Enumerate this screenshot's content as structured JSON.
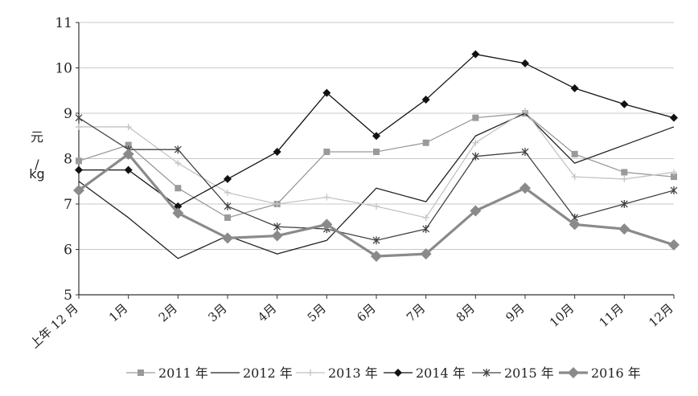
{
  "chart_data": {
    "type": "line",
    "ylabel": "元/kg",
    "ylabel_parts": [
      "元",
      "/",
      "kg"
    ],
    "ylim": [
      5,
      11
    ],
    "yticks": [
      "5",
      "6",
      "7",
      "8",
      "9",
      "10",
      "11"
    ],
    "grid": true,
    "legend_position": "bottom",
    "categories": [
      "上年 12 月",
      "1月",
      "2月",
      "3月",
      "4月",
      "5月",
      "6月",
      "7月",
      "8月",
      "9月",
      "10月",
      "11月",
      "12月"
    ],
    "series": [
      {
        "name": "2011 年",
        "marker": "square",
        "color": "#9a9a9a",
        "width": 1.3,
        "values": [
          7.95,
          8.3,
          7.35,
          6.7,
          7.0,
          8.15,
          8.15,
          8.35,
          8.9,
          9.0,
          8.1,
          7.7,
          7.6
        ]
      },
      {
        "name": "2012 年",
        "marker": "dash",
        "color": "#222222",
        "width": 1.3,
        "values": [
          7.5,
          6.7,
          5.8,
          6.3,
          5.9,
          6.2,
          7.35,
          7.05,
          8.5,
          9.0,
          7.9,
          8.3,
          8.7
        ]
      },
      {
        "name": "2013 年",
        "marker": "plus",
        "color": "#c4c4c4",
        "width": 1.3,
        "values": [
          8.7,
          8.7,
          7.9,
          7.25,
          7.0,
          7.15,
          6.95,
          6.7,
          8.35,
          9.05,
          7.6,
          7.55,
          7.7
        ]
      },
      {
        "name": "2014 年",
        "marker": "diamond",
        "color": "#111111",
        "width": 1.3,
        "values": [
          7.75,
          7.75,
          6.95,
          7.55,
          8.15,
          9.45,
          8.5,
          9.3,
          10.3,
          10.1,
          9.55,
          9.2,
          8.9
        ]
      },
      {
        "name": "2015 年",
        "marker": "star",
        "color": "#444444",
        "width": 1.3,
        "values": [
          8.9,
          8.2,
          8.2,
          6.95,
          6.5,
          6.45,
          6.2,
          6.45,
          8.05,
          8.15,
          6.7,
          7.0,
          7.3
        ]
      },
      {
        "name": "2016 年",
        "marker": "big-diamond",
        "color": "#8a8a8a",
        "width": 3.2,
        "values": [
          7.3,
          8.1,
          6.8,
          6.25,
          6.3,
          6.55,
          5.85,
          5.9,
          6.85,
          7.35,
          6.55,
          6.45,
          6.1
        ]
      }
    ]
  }
}
